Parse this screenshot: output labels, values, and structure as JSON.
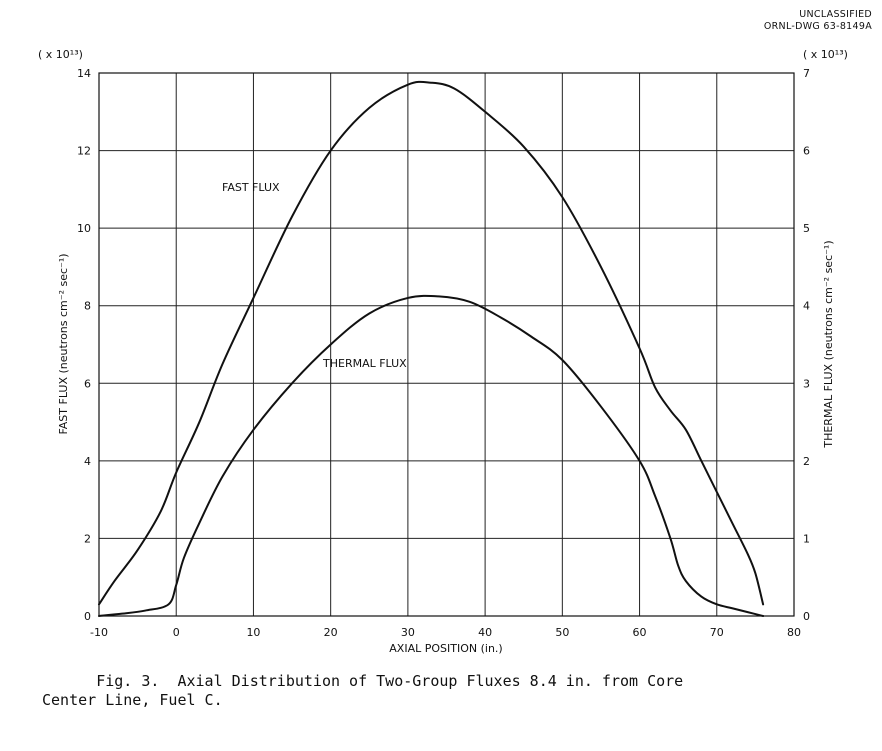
{
  "header": {
    "classification": "UNCLASSIFIED",
    "drawing_number": "ORNL-DWG 63-8149A"
  },
  "caption": "      Fig. 3.  Axial Distribution of Two-Group Fluxes 8.4 in. from Core\nCenter Line, Fuel C.",
  "chart_data": {
    "type": "line",
    "title": "",
    "xlabel": "AXIAL POSITION (in.)",
    "ylabel_left": "FAST FLUX (neutrons cm⁻² sec⁻¹)",
    "ylabel_right": "THERMAL FLUX (neutrons cm⁻² sec⁻¹)",
    "left_multiplier": "( x 10¹³)",
    "right_multiplier": "( x 10¹³)",
    "xlim": [
      -10,
      80
    ],
    "ylim_left": [
      0,
      14
    ],
    "ylim_right": [
      0,
      7
    ],
    "x_ticks": [
      "-10",
      "0",
      "10",
      "20",
      "30",
      "40",
      "50",
      "60",
      "70",
      "80"
    ],
    "y_ticks_left": [
      "0",
      "2",
      "4",
      "6",
      "8",
      "10",
      "12",
      "14"
    ],
    "y_ticks_right": [
      "0",
      "1",
      "2",
      "3",
      "4",
      "5",
      "6",
      "7"
    ],
    "grid": true,
    "series": [
      {
        "name": "FAST FLUX",
        "axis": "left",
        "x": [
          -10,
          -8,
          -5,
          -2,
          0,
          3,
          6,
          10,
          15,
          20,
          25,
          30,
          33,
          36,
          40,
          45,
          50,
          55,
          60,
          62,
          64,
          66,
          68,
          70,
          72,
          74,
          75,
          76
        ],
        "y": [
          0.3,
          0.9,
          1.7,
          2.7,
          3.7,
          5.0,
          6.5,
          8.2,
          10.3,
          12.0,
          13.1,
          13.7,
          13.75,
          13.6,
          13.0,
          12.1,
          10.8,
          9.0,
          6.9,
          5.9,
          5.3,
          4.8,
          4.0,
          3.2,
          2.4,
          1.6,
          1.1,
          0.3
        ]
      },
      {
        "name": "THERMAL FLUX",
        "axis": "right",
        "x": [
          -10,
          -7,
          -4,
          -1,
          0,
          1,
          3,
          6,
          10,
          15,
          20,
          25,
          30,
          34,
          38,
          42,
          46,
          50,
          55,
          60,
          62,
          64,
          65,
          66,
          68,
          70,
          72,
          74,
          76
        ],
        "y": [
          0.0,
          0.03,
          0.07,
          0.15,
          0.4,
          0.75,
          1.2,
          1.8,
          2.4,
          3.0,
          3.5,
          3.9,
          4.1,
          4.12,
          4.05,
          3.85,
          3.6,
          3.3,
          2.7,
          2.0,
          1.55,
          1.0,
          0.65,
          0.45,
          0.25,
          0.15,
          0.1,
          0.05,
          0.0
        ]
      }
    ]
  }
}
